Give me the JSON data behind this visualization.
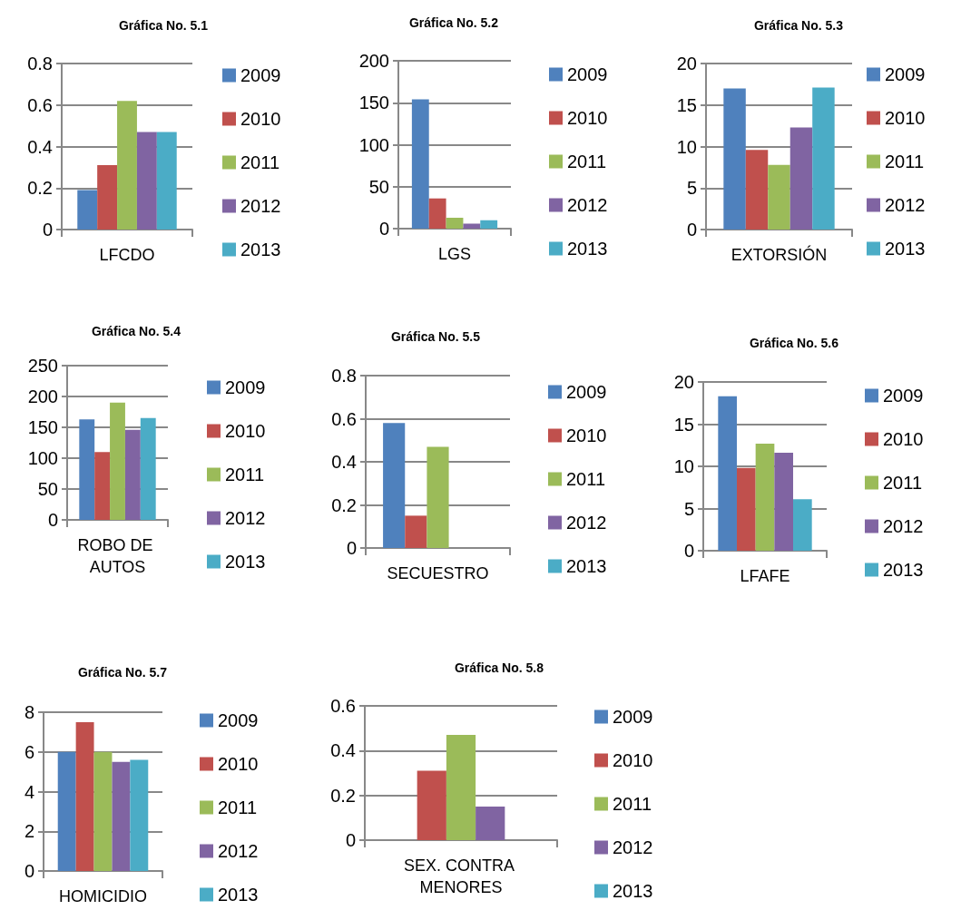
{
  "chart_data": [
    {
      "type": "bar",
      "title": "Gráfica No. 5.1",
      "categories": [
        "LFCDO"
      ],
      "ylim": [
        0,
        0.8
      ],
      "yticks": [
        0,
        0.2,
        0.4,
        0.6,
        0.8
      ],
      "grid": "y",
      "legend": "right",
      "series": [
        {
          "name": "2009",
          "color": "#4f81bd",
          "values": [
            0.19
          ]
        },
        {
          "name": "2010",
          "color": "#c0504d",
          "values": [
            0.31
          ]
        },
        {
          "name": "2011",
          "color": "#9bbb59",
          "values": [
            0.62
          ]
        },
        {
          "name": "2012",
          "color": "#8064a2",
          "values": [
            0.47
          ]
        },
        {
          "name": "2013",
          "color": "#4bacc6",
          "values": [
            0.47
          ]
        }
      ]
    },
    {
      "type": "bar",
      "title": "Gráfica No. 5.2",
      "categories": [
        "LGS"
      ],
      "ylim": [
        0,
        200
      ],
      "yticks": [
        0,
        50,
        100,
        150,
        200
      ],
      "grid": "y",
      "legend": "right",
      "series": [
        {
          "name": "2009",
          "color": "#4f81bd",
          "values": [
            154
          ]
        },
        {
          "name": "2010",
          "color": "#c0504d",
          "values": [
            36
          ]
        },
        {
          "name": "2011",
          "color": "#9bbb59",
          "values": [
            13
          ]
        },
        {
          "name": "2012",
          "color": "#8064a2",
          "values": [
            6
          ]
        },
        {
          "name": "2013",
          "color": "#4bacc6",
          "values": [
            10
          ]
        }
      ]
    },
    {
      "type": "bar",
      "title": "Gráfica No. 5.3",
      "categories": [
        "EXTORSIÓN"
      ],
      "ylim": [
        0,
        20
      ],
      "yticks": [
        0,
        5,
        10,
        15,
        20
      ],
      "grid": "y",
      "legend": "right",
      "series": [
        {
          "name": "2009",
          "color": "#4f81bd",
          "values": [
            17
          ]
        },
        {
          "name": "2010",
          "color": "#c0504d",
          "values": [
            9.6
          ]
        },
        {
          "name": "2011",
          "color": "#9bbb59",
          "values": [
            7.8
          ]
        },
        {
          "name": "2012",
          "color": "#8064a2",
          "values": [
            12.3
          ]
        },
        {
          "name": "2013",
          "color": "#4bacc6",
          "values": [
            17.1
          ]
        }
      ]
    },
    {
      "type": "bar",
      "title": "Gráfica No. 5.4",
      "categories": [
        "ROBO DE AUTOS"
      ],
      "ylim": [
        0,
        250
      ],
      "yticks": [
        0,
        50,
        100,
        150,
        200,
        250
      ],
      "grid": "y",
      "legend": "right",
      "series": [
        {
          "name": "2009",
          "color": "#4f81bd",
          "values": [
            163
          ]
        },
        {
          "name": "2010",
          "color": "#c0504d",
          "values": [
            110
          ]
        },
        {
          "name": "2011",
          "color": "#9bbb59",
          "values": [
            190
          ]
        },
        {
          "name": "2012",
          "color": "#8064a2",
          "values": [
            146
          ]
        },
        {
          "name": "2013",
          "color": "#4bacc6",
          "values": [
            165
          ]
        }
      ]
    },
    {
      "type": "bar",
      "title": "Gráfica No. 5.5",
      "categories": [
        "SECUESTRO"
      ],
      "ylim": [
        0,
        0.8
      ],
      "yticks": [
        0,
        0.2,
        0.4,
        0.6,
        0.8
      ],
      "grid": "y",
      "legend": "right",
      "series": [
        {
          "name": "2009",
          "color": "#4f81bd",
          "values": [
            0.58
          ]
        },
        {
          "name": "2010",
          "color": "#c0504d",
          "values": [
            0.15
          ]
        },
        {
          "name": "2011",
          "color": "#9bbb59",
          "values": [
            0.47
          ]
        },
        {
          "name": "2012",
          "color": "#8064a2",
          "values": [
            0
          ]
        },
        {
          "name": "2013",
          "color": "#4bacc6",
          "values": [
            0
          ]
        }
      ]
    },
    {
      "type": "bar",
      "title": "Gráfica No. 5.6",
      "categories": [
        "LFAFE"
      ],
      "ylim": [
        0,
        20
      ],
      "yticks": [
        0,
        5,
        10,
        15,
        20
      ],
      "grid": "y",
      "legend": "right",
      "series": [
        {
          "name": "2009",
          "color": "#4f81bd",
          "values": [
            18.3
          ]
        },
        {
          "name": "2010",
          "color": "#c0504d",
          "values": [
            9.8
          ]
        },
        {
          "name": "2011",
          "color": "#9bbb59",
          "values": [
            12.7
          ]
        },
        {
          "name": "2012",
          "color": "#8064a2",
          "values": [
            11.6
          ]
        },
        {
          "name": "2013",
          "color": "#4bacc6",
          "values": [
            6.1
          ]
        }
      ]
    },
    {
      "type": "bar",
      "title": "Gráfica No. 5.7",
      "categories": [
        "HOMICIDIO"
      ],
      "ylim": [
        0,
        8
      ],
      "yticks": [
        0,
        2,
        4,
        6,
        8
      ],
      "grid": "y",
      "legend": "right",
      "series": [
        {
          "name": "2009",
          "color": "#4f81bd",
          "values": [
            6.0
          ]
        },
        {
          "name": "2010",
          "color": "#c0504d",
          "values": [
            7.5
          ]
        },
        {
          "name": "2011",
          "color": "#9bbb59",
          "values": [
            6.0
          ]
        },
        {
          "name": "2012",
          "color": "#8064a2",
          "values": [
            5.5
          ]
        },
        {
          "name": "2013",
          "color": "#4bacc6",
          "values": [
            5.6
          ]
        }
      ]
    },
    {
      "type": "bar",
      "title": "Gráfica No. 5.8",
      "categories": [
        "SEX. CONTRA MENORES"
      ],
      "ylim": [
        0,
        0.6
      ],
      "yticks": [
        0,
        0.2,
        0.4,
        0.6
      ],
      "grid": "y",
      "legend": "right",
      "series": [
        {
          "name": "2009",
          "color": "#4f81bd",
          "values": [
            0
          ]
        },
        {
          "name": "2010",
          "color": "#c0504d",
          "values": [
            0.31
          ]
        },
        {
          "name": "2011",
          "color": "#9bbb59",
          "values": [
            0.47
          ]
        },
        {
          "name": "2012",
          "color": "#8064a2",
          "values": [
            0.15
          ]
        },
        {
          "name": "2013",
          "color": "#4bacc6",
          "values": [
            0
          ]
        }
      ]
    }
  ]
}
